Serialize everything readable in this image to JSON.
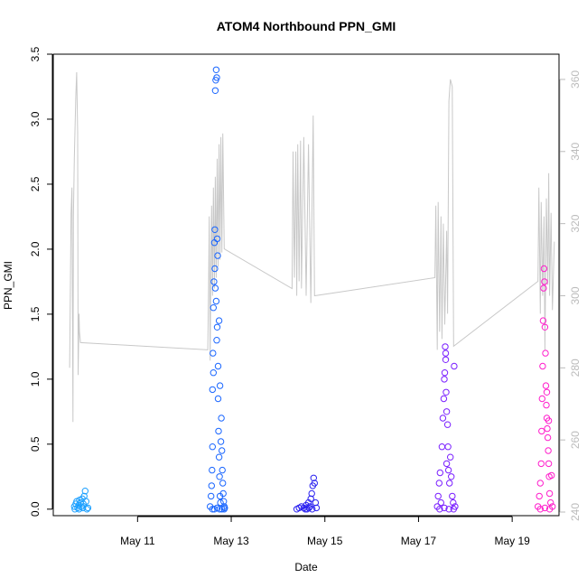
{
  "chart_data": {
    "type": "scatter",
    "title": "ATOM4 Northbound PPN_GMI",
    "xlabel": "Date",
    "ylabel": "PPN_GMI",
    "x_units": "days in May",
    "xlim": [
      9.2,
      20.0
    ],
    "ylim": [
      -0.05,
      3.5
    ],
    "y_ticks": [
      0.0,
      0.5,
      1.0,
      1.5,
      2.0,
      2.5,
      3.0,
      3.5
    ],
    "x_ticks": [
      {
        "value": 11,
        "label": "May 11"
      },
      {
        "value": 13,
        "label": "May 13"
      },
      {
        "value": 15,
        "label": "May 15"
      },
      {
        "value": 17,
        "label": "May 17"
      },
      {
        "value": 19,
        "label": "May 19"
      }
    ],
    "secondary_axis": {
      "side": "right",
      "color": "#bbbbbb",
      "ylim": [
        239,
        367
      ],
      "ticks": [
        240,
        260,
        280,
        300,
        320,
        340,
        360
      ]
    },
    "grid": false,
    "series": [
      {
        "color": "#1a9fff",
        "points": [
          [
            9.65,
            0.02
          ],
          [
            9.68,
            0.04
          ],
          [
            9.7,
            0.06
          ],
          [
            9.72,
            0.01
          ],
          [
            9.74,
            0.03
          ],
          [
            9.76,
            0.07
          ],
          [
            9.78,
            0.05
          ],
          [
            9.8,
            0.02
          ],
          [
            9.82,
            0.08
          ],
          [
            9.84,
            0.04
          ],
          [
            9.86,
            0.1
          ],
          [
            9.88,
            0.14
          ],
          [
            9.9,
            0.06
          ],
          [
            9.92,
            0.0
          ],
          [
            9.94,
            0.01
          ],
          [
            9.66,
            0.0
          ],
          [
            9.75,
            0.0
          ],
          [
            9.83,
            0.01
          ]
        ]
      },
      {
        "color": "#1a66ff",
        "points": [
          [
            12.55,
            0.02
          ],
          [
            12.57,
            0.1
          ],
          [
            12.58,
            0.18
          ],
          [
            12.59,
            0.3
          ],
          [
            12.6,
            0.48
          ],
          [
            12.6,
            0.92
          ],
          [
            12.61,
            1.2
          ],
          [
            12.62,
            1.55
          ],
          [
            12.63,
            1.75
          ],
          [
            12.64,
            2.05
          ],
          [
            12.65,
            2.15
          ],
          [
            12.65,
            1.85
          ],
          [
            12.66,
            3.22
          ],
          [
            12.67,
            3.3
          ],
          [
            12.68,
            3.38
          ],
          [
            12.69,
            3.32
          ],
          [
            12.68,
            1.6
          ],
          [
            12.7,
            1.4
          ],
          [
            12.7,
            2.08
          ],
          [
            12.71,
            1.95
          ],
          [
            12.72,
            1.1
          ],
          [
            12.72,
            0.85
          ],
          [
            12.73,
            0.6
          ],
          [
            12.74,
            0.4
          ],
          [
            12.75,
            0.25
          ],
          [
            12.76,
            0.1
          ],
          [
            12.77,
            0.05
          ],
          [
            12.78,
            0.52
          ],
          [
            12.79,
            0.7
          ],
          [
            12.8,
            0.45
          ],
          [
            12.81,
            0.3
          ],
          [
            12.82,
            0.2
          ],
          [
            12.83,
            0.12
          ],
          [
            12.84,
            0.06
          ],
          [
            12.85,
            0.02
          ],
          [
            12.86,
            0.01
          ],
          [
            12.6,
            0.0
          ],
          [
            12.64,
            0.0
          ],
          [
            12.7,
            0.01
          ],
          [
            12.75,
            0.0
          ],
          [
            12.8,
            0.0
          ],
          [
            12.85,
            0.0
          ],
          [
            12.62,
            1.05
          ],
          [
            12.74,
            1.45
          ],
          [
            12.76,
            0.95
          ],
          [
            12.66,
            1.7
          ],
          [
            12.69,
            1.3
          ]
        ]
      },
      {
        "color": "#2b22f0",
        "points": [
          [
            14.4,
            0.0
          ],
          [
            14.45,
            0.01
          ],
          [
            14.5,
            0.02
          ],
          [
            14.55,
            0.01
          ],
          [
            14.6,
            0.03
          ],
          [
            14.62,
            0.0
          ],
          [
            14.65,
            0.05
          ],
          [
            14.68,
            0.02
          ],
          [
            14.7,
            0.08
          ],
          [
            14.72,
            0.12
          ],
          [
            14.74,
            0.18
          ],
          [
            14.76,
            0.24
          ],
          [
            14.78,
            0.2
          ],
          [
            14.8,
            0.05
          ],
          [
            14.82,
            0.01
          ],
          [
            14.58,
            0.0
          ],
          [
            14.66,
            0.01
          ],
          [
            14.73,
            0.0
          ]
        ]
      },
      {
        "color": "#7a1fff",
        "points": [
          [
            17.4,
            0.02
          ],
          [
            17.42,
            0.1
          ],
          [
            17.44,
            0.2
          ],
          [
            17.46,
            0.28
          ],
          [
            17.48,
            0.05
          ],
          [
            17.5,
            0.48
          ],
          [
            17.52,
            0.7
          ],
          [
            17.54,
            0.85
          ],
          [
            17.55,
            1.0
          ],
          [
            17.56,
            1.05
          ],
          [
            17.57,
            1.25
          ],
          [
            17.58,
            1.15
          ],
          [
            17.59,
            0.9
          ],
          [
            17.6,
            0.75
          ],
          [
            17.62,
            0.65
          ],
          [
            17.63,
            0.48
          ],
          [
            17.64,
            0.3
          ],
          [
            17.66,
            0.2
          ],
          [
            17.68,
            0.4
          ],
          [
            17.7,
            0.25
          ],
          [
            17.72,
            0.1
          ],
          [
            17.74,
            0.05
          ],
          [
            17.76,
            1.1
          ],
          [
            17.78,
            0.02
          ],
          [
            17.45,
            0.0
          ],
          [
            17.55,
            0.01
          ],
          [
            17.65,
            0.0
          ],
          [
            17.75,
            0.0
          ],
          [
            17.6,
            0.35
          ],
          [
            17.58,
            1.2
          ]
        ]
      },
      {
        "color": "#ff1fcc",
        "points": [
          [
            19.55,
            0.02
          ],
          [
            19.58,
            0.1
          ],
          [
            19.6,
            0.2
          ],
          [
            19.62,
            0.35
          ],
          [
            19.63,
            0.6
          ],
          [
            19.64,
            0.85
          ],
          [
            19.65,
            1.1
          ],
          [
            19.66,
            1.45
          ],
          [
            19.67,
            1.7
          ],
          [
            19.68,
            1.85
          ],
          [
            19.69,
            1.75
          ],
          [
            19.7,
            1.4
          ],
          [
            19.71,
            1.2
          ],
          [
            19.72,
            0.95
          ],
          [
            19.73,
            0.8
          ],
          [
            19.74,
            0.7
          ],
          [
            19.75,
            0.62
          ],
          [
            19.76,
            0.55
          ],
          [
            19.77,
            0.45
          ],
          [
            19.78,
            0.35
          ],
          [
            19.79,
            0.25
          ],
          [
            19.8,
            0.12
          ],
          [
            19.82,
            0.05
          ],
          [
            19.84,
            0.26
          ],
          [
            19.86,
            0.02
          ],
          [
            19.6,
            0.0
          ],
          [
            19.7,
            0.01
          ],
          [
            19.8,
            0.0
          ],
          [
            19.74,
            0.9
          ],
          [
            19.78,
            0.68
          ]
        ]
      }
    ],
    "line_series": {
      "axis": "secondary",
      "color": "#c8c8c8",
      "points": [
        [
          9.55,
          280
        ],
        [
          9.58,
          323
        ],
        [
          9.6,
          330
        ],
        [
          9.62,
          265
        ],
        [
          9.63,
          322
        ],
        [
          9.65,
          338
        ],
        [
          9.68,
          355
        ],
        [
          9.7,
          362
        ],
        [
          9.72,
          345
        ],
        [
          9.73,
          278
        ],
        [
          9.75,
          295
        ],
        [
          9.76,
          290
        ],
        [
          9.78,
          287
        ],
        [
          12.5,
          285
        ],
        [
          12.52,
          305
        ],
        [
          12.53,
          322
        ],
        [
          12.55,
          282
        ],
        [
          12.57,
          312
        ],
        [
          12.58,
          325
        ],
        [
          12.6,
          300
        ],
        [
          12.62,
          330
        ],
        [
          12.64,
          302
        ],
        [
          12.66,
          333
        ],
        [
          12.68,
          305
        ],
        [
          12.7,
          338
        ],
        [
          12.72,
          308
        ],
        [
          12.74,
          342
        ],
        [
          12.76,
          310
        ],
        [
          12.78,
          344
        ],
        [
          12.8,
          312
        ],
        [
          12.82,
          345
        ],
        [
          12.85,
          313
        ],
        [
          14.3,
          302
        ],
        [
          14.32,
          340
        ],
        [
          14.35,
          305
        ],
        [
          14.38,
          340
        ],
        [
          14.4,
          300
        ],
        [
          14.42,
          342
        ],
        [
          14.45,
          304
        ],
        [
          14.48,
          343
        ],
        [
          14.5,
          302
        ],
        [
          14.55,
          344
        ],
        [
          14.6,
          300
        ],
        [
          14.65,
          342
        ],
        [
          14.7,
          298
        ],
        [
          14.75,
          350
        ],
        [
          14.78,
          300
        ],
        [
          17.35,
          305
        ],
        [
          17.37,
          325
        ],
        [
          17.4,
          285
        ],
        [
          17.42,
          326
        ],
        [
          17.45,
          290
        ],
        [
          17.48,
          322
        ],
        [
          17.5,
          288
        ],
        [
          17.53,
          320
        ],
        [
          17.56,
          292
        ],
        [
          17.6,
          318
        ],
        [
          17.62,
          295
        ],
        [
          17.65,
          354
        ],
        [
          17.68,
          360
        ],
        [
          17.72,
          358
        ],
        [
          17.75,
          286
        ],
        [
          19.55,
          304
        ],
        [
          19.57,
          330
        ],
        [
          19.6,
          295
        ],
        [
          19.62,
          326
        ],
        [
          19.65,
          300
        ],
        [
          19.68,
          322
        ],
        [
          19.7,
          285
        ],
        [
          19.73,
          327
        ],
        [
          19.76,
          303
        ],
        [
          19.78,
          334
        ],
        [
          19.8,
          300
        ],
        [
          19.83,
          323
        ],
        [
          19.86,
          296
        ],
        [
          19.9,
          315
        ]
      ]
    }
  }
}
